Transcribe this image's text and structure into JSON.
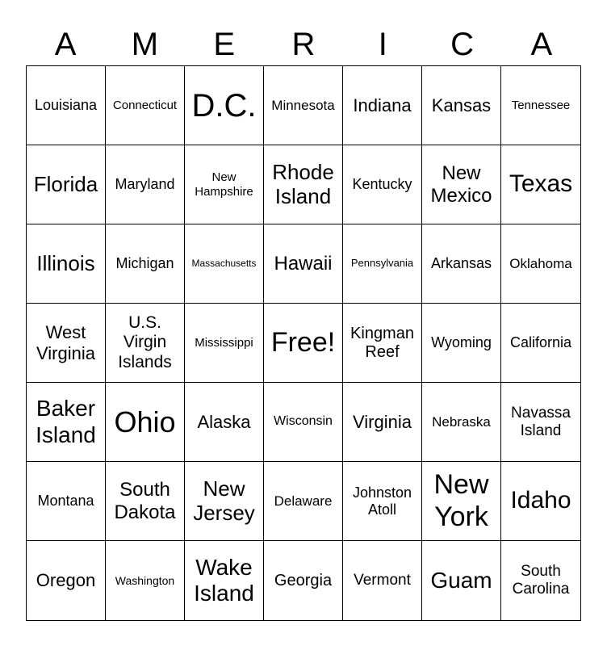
{
  "header": [
    "A",
    "M",
    "E",
    "R",
    "I",
    "C",
    "A"
  ],
  "cells": [
    [
      "Louisiana",
      "Connecticut",
      "D.C.",
      "Minnesota",
      "Indiana",
      "Kansas",
      "Tennessee"
    ],
    [
      "Florida",
      "Maryland",
      "New Hampshire",
      "Rhode Island",
      "Kentucky",
      "New Mexico",
      "Texas"
    ],
    [
      "Illinois",
      "Michigan",
      "Massachusetts",
      "Hawaii",
      "Pennsylvania",
      "Arkansas",
      "Oklahoma"
    ],
    [
      "West Virginia",
      "U.S. Virgin Islands",
      "Mississippi",
      "Free!",
      "Kingman Reef",
      "Wyoming",
      "California"
    ],
    [
      "Baker Island",
      "Ohio",
      "Alaska",
      "Wisconsin",
      "Virginia",
      "Nebraska",
      "Navassa Island"
    ],
    [
      "Montana",
      "South Dakota",
      "New Jersey",
      "Delaware",
      "Johnston Atoll",
      "New York",
      "Idaho"
    ],
    [
      "Oregon",
      "Washington",
      "Wake Island",
      "Georgia",
      "Vermont",
      "Guam",
      "South Carolina"
    ]
  ]
}
